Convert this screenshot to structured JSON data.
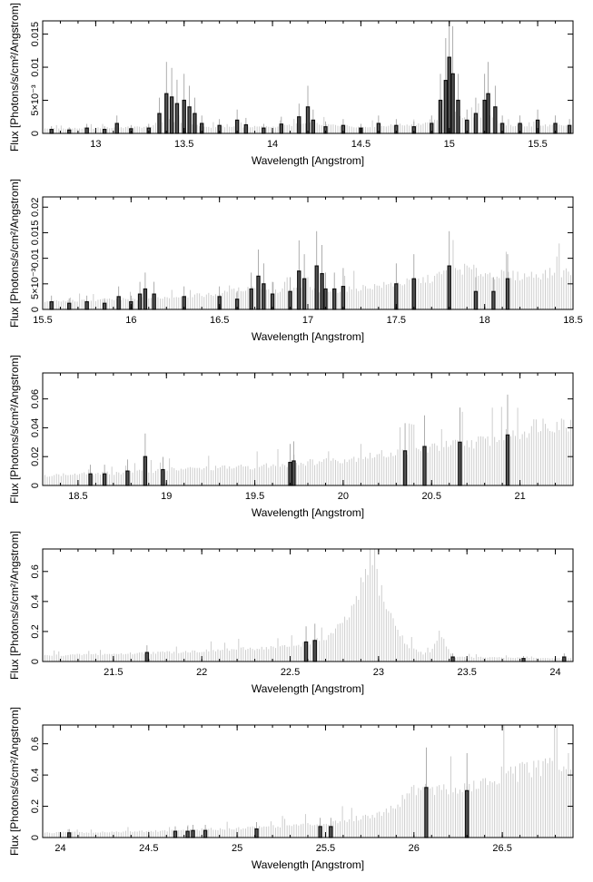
{
  "colors": {
    "model": "#c8c8c8",
    "data": "#111111",
    "axis": "#000000"
  },
  "chart_data": [
    {
      "type": "line",
      "xlabel": "Wavelength [Angstrom]",
      "ylabel": "Flux [Photons/s/cm²/Angstrom]",
      "xlim": [
        12.7,
        15.7
      ],
      "ylim": [
        0,
        0.017
      ],
      "xticks": [
        13,
        13.5,
        14,
        14.5,
        15,
        15.5
      ],
      "xtick_labels": [
        "13",
        "13.5",
        "14",
        "14.5",
        "15",
        "15.5"
      ],
      "yticks": [
        0,
        0.005,
        0.01,
        0.015
      ],
      "ytick_labels": [
        "0",
        "5×10⁻³",
        "0.01",
        "0.015"
      ],
      "model_envelope": [
        [
          12.7,
          0.0007
        ],
        [
          13.0,
          0.0008
        ],
        [
          13.3,
          0.001
        ],
        [
          13.4,
          0.002
        ],
        [
          13.5,
          0.0015
        ],
        [
          13.6,
          0.001
        ],
        [
          14.0,
          0.001
        ],
        [
          14.2,
          0.0015
        ],
        [
          14.5,
          0.001
        ],
        [
          14.9,
          0.0015
        ],
        [
          15.0,
          0.004
        ],
        [
          15.1,
          0.002
        ],
        [
          15.2,
          0.003
        ],
        [
          15.3,
          0.0012
        ],
        [
          15.7,
          0.0012
        ]
      ],
      "data_points": [
        [
          12.75,
          0.0006
        ],
        [
          12.85,
          0.0005
        ],
        [
          12.95,
          0.0008
        ],
        [
          13.05,
          0.0006
        ],
        [
          13.12,
          0.0015
        ],
        [
          13.2,
          0.0007
        ],
        [
          13.3,
          0.0008
        ],
        [
          13.36,
          0.003
        ],
        [
          13.4,
          0.006
        ],
        [
          13.43,
          0.0055
        ],
        [
          13.46,
          0.0045
        ],
        [
          13.5,
          0.005
        ],
        [
          13.53,
          0.004
        ],
        [
          13.56,
          0.003
        ],
        [
          13.6,
          0.0015
        ],
        [
          13.7,
          0.0012
        ],
        [
          13.8,
          0.002
        ],
        [
          13.85,
          0.0013
        ],
        [
          13.95,
          0.0008
        ],
        [
          14.05,
          0.0014
        ],
        [
          14.15,
          0.0025
        ],
        [
          14.2,
          0.004
        ],
        [
          14.23,
          0.002
        ],
        [
          14.3,
          0.001
        ],
        [
          14.4,
          0.0012
        ],
        [
          14.5,
          0.0008
        ],
        [
          14.6,
          0.0015
        ],
        [
          14.7,
          0.0012
        ],
        [
          14.8,
          0.001
        ],
        [
          14.9,
          0.0015
        ],
        [
          14.95,
          0.005
        ],
        [
          14.98,
          0.008
        ],
        [
          15.0,
          0.0115
        ],
        [
          15.02,
          0.009
        ],
        [
          15.05,
          0.005
        ],
        [
          15.1,
          0.002
        ],
        [
          15.15,
          0.003
        ],
        [
          15.2,
          0.005
        ],
        [
          15.22,
          0.006
        ],
        [
          15.26,
          0.004
        ],
        [
          15.3,
          0.0015
        ],
        [
          15.4,
          0.0015
        ],
        [
          15.5,
          0.002
        ],
        [
          15.6,
          0.0015
        ],
        [
          15.68,
          0.0012
        ]
      ]
    },
    {
      "type": "line",
      "xlabel": "Wavelength [Angstrom]",
      "ylabel": "Flux [Photons/s/cm²/Angstrom]",
      "xlim": [
        15.5,
        18.5
      ],
      "ylim": [
        0,
        0.022
      ],
      "xticks": [
        15.5,
        16,
        16.5,
        17,
        17.5,
        18,
        18.5
      ],
      "xtick_labels": [
        "15.5",
        "16",
        "16.5",
        "17",
        "17.5",
        "18",
        "18.5"
      ],
      "yticks": [
        0,
        0.005,
        0.01,
        0.015,
        0.02
      ],
      "ytick_labels": [
        "0",
        "5×10⁻³",
        "0.01",
        "0.015",
        "0.02"
      ],
      "model_envelope": [
        [
          15.5,
          0.0015
        ],
        [
          16.0,
          0.002
        ],
        [
          16.5,
          0.003
        ],
        [
          16.7,
          0.0045
        ],
        [
          16.8,
          0.0035
        ],
        [
          17.0,
          0.004
        ],
        [
          17.1,
          0.0035
        ],
        [
          17.5,
          0.005
        ],
        [
          17.7,
          0.006
        ],
        [
          17.8,
          0.0075
        ],
        [
          17.9,
          0.008
        ],
        [
          18.0,
          0.007
        ],
        [
          18.2,
          0.0065
        ],
        [
          18.5,
          0.0075
        ]
      ],
      "data_points": [
        [
          15.55,
          0.0015
        ],
        [
          15.65,
          0.0012
        ],
        [
          15.75,
          0.0015
        ],
        [
          15.85,
          0.0012
        ],
        [
          15.93,
          0.0025
        ],
        [
          16.0,
          0.0015
        ],
        [
          16.05,
          0.003
        ],
        [
          16.08,
          0.004
        ],
        [
          16.13,
          0.003
        ],
        [
          16.3,
          0.0025
        ],
        [
          16.5,
          0.0025
        ],
        [
          16.6,
          0.002
        ],
        [
          16.68,
          0.004
        ],
        [
          16.72,
          0.0065
        ],
        [
          16.75,
          0.005
        ],
        [
          16.8,
          0.003
        ],
        [
          16.9,
          0.0035
        ],
        [
          16.95,
          0.0075
        ],
        [
          16.98,
          0.006
        ],
        [
          17.05,
          0.0085
        ],
        [
          17.08,
          0.007
        ],
        [
          17.1,
          0.004
        ],
        [
          17.15,
          0.004
        ],
        [
          17.2,
          0.0045
        ],
        [
          17.5,
          0.005
        ],
        [
          17.6,
          0.006
        ],
        [
          17.8,
          0.0085
        ],
        [
          17.95,
          0.0035
        ],
        [
          18.05,
          0.0035
        ],
        [
          18.13,
          0.006
        ]
      ]
    },
    {
      "type": "line",
      "xlabel": "Wavelength [Angstrom]",
      "ylabel": "Flux [Photons/s/cm²/Angstrom]",
      "xlim": [
        18.3,
        21.3
      ],
      "ylim": [
        0,
        0.078
      ],
      "xticks": [
        18.5,
        19,
        19.5,
        20,
        20.5,
        21
      ],
      "xtick_labels": [
        "18.5",
        "19",
        "19.5",
        "20",
        "20.5",
        "21"
      ],
      "yticks": [
        0,
        0.02,
        0.04,
        0.06
      ],
      "ytick_labels": [
        "0",
        "0.02",
        "0.04",
        "0.06"
      ],
      "model_envelope": [
        [
          18.3,
          0.007
        ],
        [
          18.8,
          0.009
        ],
        [
          19.0,
          0.011
        ],
        [
          19.5,
          0.013
        ],
        [
          20.0,
          0.018
        ],
        [
          20.5,
          0.026
        ],
        [
          20.8,
          0.031
        ],
        [
          21.0,
          0.036
        ],
        [
          21.1,
          0.043
        ],
        [
          21.3,
          0.043
        ]
      ],
      "data_points": [
        [
          18.57,
          0.008
        ],
        [
          18.65,
          0.008
        ],
        [
          18.78,
          0.01
        ],
        [
          18.88,
          0.02
        ],
        [
          18.98,
          0.011
        ],
        [
          19.7,
          0.016
        ],
        [
          19.72,
          0.017
        ],
        [
          20.35,
          0.024
        ],
        [
          20.46,
          0.027
        ],
        [
          20.66,
          0.03
        ],
        [
          20.93,
          0.035
        ]
      ]
    },
    {
      "type": "line",
      "xlabel": "Wavelength [Angstrom]",
      "ylabel": "Flux [Photons/s/cm²/Angstrom]",
      "xlim": [
        21.1,
        24.1
      ],
      "ylim": [
        0,
        0.75
      ],
      "xticks": [
        21.5,
        22,
        22.5,
        23,
        23.5,
        24
      ],
      "xtick_labels": [
        "21.5",
        "22",
        "22.5",
        "23",
        "23.5",
        "24"
      ],
      "yticks": [
        0,
        0.2,
        0.4,
        0.6
      ],
      "ytick_labels": [
        "0",
        "0.2",
        "0.4",
        "0.6"
      ],
      "model_envelope": [
        [
          21.1,
          0.04
        ],
        [
          21.5,
          0.05
        ],
        [
          22.0,
          0.07
        ],
        [
          22.5,
          0.1
        ],
        [
          22.7,
          0.15
        ],
        [
          22.8,
          0.25
        ],
        [
          22.88,
          0.4
        ],
        [
          22.94,
          0.66
        ],
        [
          22.98,
          0.6
        ],
        [
          23.05,
          0.35
        ],
        [
          23.15,
          0.12
        ],
        [
          23.25,
          0.05
        ],
        [
          23.3,
          0.07
        ],
        [
          23.35,
          0.2
        ],
        [
          23.38,
          0.12
        ],
        [
          23.42,
          0.03
        ],
        [
          24.1,
          0.02
        ]
      ],
      "data_points": [
        [
          21.69,
          0.06
        ],
        [
          22.59,
          0.13
        ],
        [
          22.64,
          0.14
        ],
        [
          23.42,
          0.03
        ],
        [
          23.82,
          0.02
        ],
        [
          24.05,
          0.03
        ]
      ]
    },
    {
      "type": "line",
      "xlabel": "Wavelength [Angstrom]",
      "ylabel": "Flux [Photons/s/cm²/Angstrom]",
      "xlim": [
        23.9,
        26.9
      ],
      "ylim": [
        0,
        0.72
      ],
      "xticks": [
        24,
        24.5,
        25,
        25.5,
        26,
        26.5
      ],
      "xtick_labels": [
        "24",
        "24.5",
        "25",
        "25.5",
        "26",
        "26.5"
      ],
      "yticks": [
        0,
        0.2,
        0.4,
        0.6
      ],
      "ytick_labels": [
        "0",
        "0.2",
        "0.4",
        "0.6"
      ],
      "model_envelope": [
        [
          23.9,
          0.03
        ],
        [
          24.5,
          0.04
        ],
        [
          25.0,
          0.06
        ],
        [
          25.5,
          0.09
        ],
        [
          25.8,
          0.15
        ],
        [
          25.92,
          0.22
        ],
        [
          25.97,
          0.31
        ],
        [
          26.05,
          0.32
        ],
        [
          26.2,
          0.3
        ],
        [
          26.4,
          0.34
        ],
        [
          26.5,
          0.4
        ],
        [
          26.7,
          0.44
        ],
        [
          26.85,
          0.48
        ],
        [
          26.9,
          0.46
        ]
      ],
      "data_points": [
        [
          24.05,
          0.03
        ],
        [
          24.65,
          0.04
        ],
        [
          24.72,
          0.04
        ],
        [
          24.75,
          0.045
        ],
        [
          24.82,
          0.045
        ],
        [
          25.11,
          0.055
        ],
        [
          25.47,
          0.07
        ],
        [
          25.53,
          0.07
        ],
        [
          26.07,
          0.32
        ],
        [
          26.3,
          0.3
        ]
      ]
    }
  ]
}
